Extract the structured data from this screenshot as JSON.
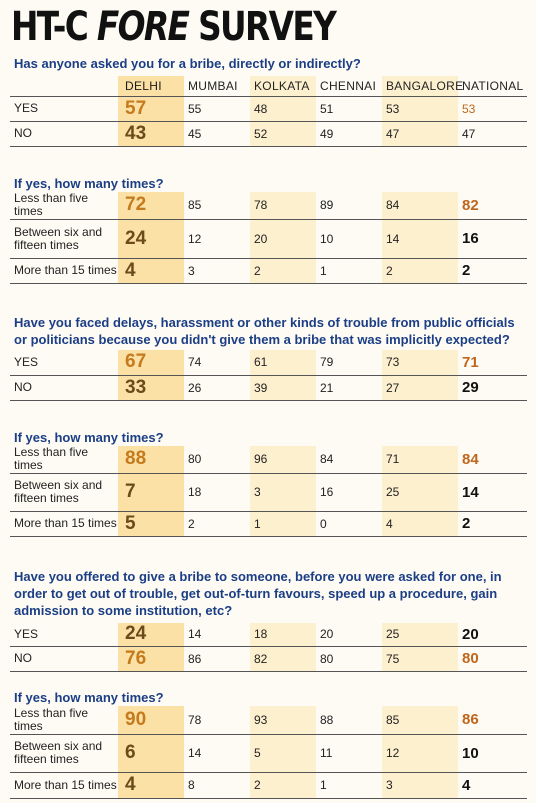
{
  "title": {
    "prefix": "HT-C ",
    "fore": "FORE",
    "suffix": " SURVEY"
  },
  "columns": [
    "DELHI",
    "MUMBAI",
    "KOLKATA",
    "CHENNAI",
    "BANGALORE",
    "NATIONAL"
  ],
  "q1": {
    "question": "Has anyone asked you for a bribe, directly or indirectly?",
    "rows": [
      {
        "label": "YES",
        "values": [
          "57",
          "55",
          "48",
          "51",
          "53",
          "53"
        ]
      },
      {
        "label": "NO",
        "values": [
          "43",
          "45",
          "52",
          "49",
          "47",
          "47"
        ]
      }
    ],
    "sub": "If yes, how many times?",
    "sub_rows": [
      {
        "label": "Less than five times",
        "values": [
          "72",
          "85",
          "78",
          "89",
          "84",
          "82"
        ]
      },
      {
        "label": "Between six and fifteen times",
        "values": [
          "24",
          "12",
          "20",
          "10",
          "14",
          "16"
        ]
      },
      {
        "label": "More than 15 times",
        "values": [
          "4",
          "3",
          "2",
          "1",
          "2",
          "2"
        ]
      }
    ]
  },
  "q2": {
    "question": "Have you faced delays, harassment or other kinds of trouble from public officials or politicians because you didn't give them a bribe that was implicitly expected?",
    "rows": [
      {
        "label": "YES",
        "values": [
          "67",
          "74",
          "61",
          "79",
          "73",
          "71"
        ]
      },
      {
        "label": "NO",
        "values": [
          "33",
          "26",
          "39",
          "21",
          "27",
          "29"
        ]
      }
    ],
    "sub": "If yes, how many times?",
    "sub_rows": [
      {
        "label": "Less than five times",
        "values": [
          "88",
          "80",
          "96",
          "84",
          "71",
          "84"
        ]
      },
      {
        "label": "Between six and fifteen times",
        "values": [
          "7",
          "18",
          "3",
          "16",
          "25",
          "14"
        ]
      },
      {
        "label": "More than 15 times",
        "values": [
          "5",
          "2",
          "1",
          "0",
          "4",
          "2"
        ]
      }
    ]
  },
  "q3": {
    "question": "Have you offered to give a bribe to someone, before you were asked for one, in order to get out of trouble, get out-of-turn favours, speed up a procedure, gain admission to some institution, etc?",
    "rows": [
      {
        "label": "YES",
        "values": [
          "24",
          "14",
          "18",
          "20",
          "25",
          "20"
        ]
      },
      {
        "label": "NO",
        "values": [
          "76",
          "86",
          "82",
          "80",
          "75",
          "80"
        ]
      }
    ],
    "sub": "If yes, how many times?",
    "sub_rows": [
      {
        "label": "Less than five times",
        "values": [
          "90",
          "78",
          "93",
          "88",
          "85",
          "86"
        ]
      },
      {
        "label": "Between six and fifteen times",
        "values": [
          "6",
          "14",
          "5",
          "11",
          "12",
          "10"
        ]
      },
      {
        "label": "More than 15 times",
        "values": [
          "4",
          "8",
          "2",
          "1",
          "3",
          "4"
        ]
      }
    ]
  }
}
